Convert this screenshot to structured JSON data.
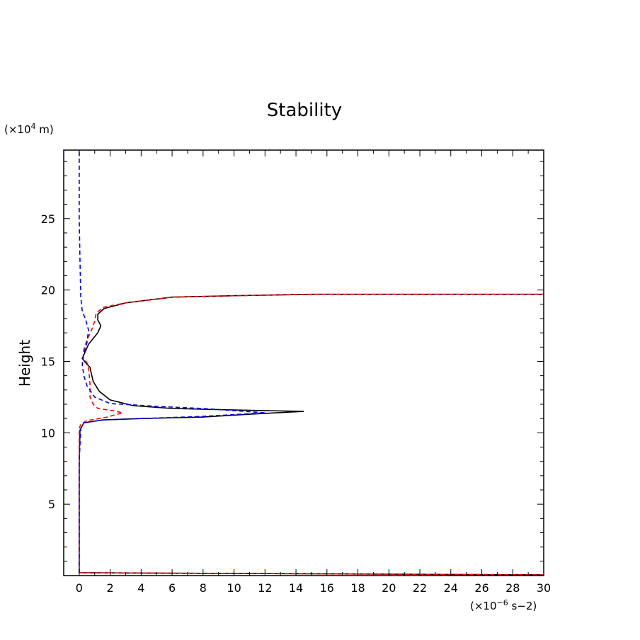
{
  "chart_data": {
    "type": "line",
    "title": "Stability",
    "ylabel": "Height",
    "y_unit_prefix": "(×10",
    "y_unit_exponent": "4",
    "y_unit_suffix": " m)",
    "x_unit_prefix": "(×10",
    "x_unit_exponent": "−6",
    "x_unit_suffix": " s−2)",
    "xlim": [
      -1,
      30
    ],
    "ylim": [
      0,
      29.8
    ],
    "x_ticks": [
      0,
      2,
      4,
      6,
      8,
      10,
      12,
      14,
      16,
      18,
      20,
      22,
      24,
      26,
      28,
      30
    ],
    "x_tick_labels": [
      "0",
      "2",
      "4",
      "6",
      "8",
      "10",
      "12",
      "14",
      "16",
      "18",
      "20",
      "22",
      "24",
      "26",
      "28",
      "30"
    ],
    "y_ticks": [
      5,
      10,
      15,
      20,
      25
    ],
    "y_tick_labels": [
      "5",
      "10",
      "15",
      "20",
      "25"
    ],
    "x_minor_step": 1,
    "y_minor_step": 1,
    "series": [
      {
        "name": "solid black",
        "color": "#000000",
        "dash": "solid",
        "points": [
          [
            30,
            0.05
          ],
          [
            0,
            0.2
          ],
          [
            0,
            2
          ],
          [
            0,
            8
          ],
          [
            0.05,
            10.2
          ],
          [
            0.3,
            10.7
          ],
          [
            1.5,
            10.9
          ],
          [
            4,
            11.0
          ],
          [
            8,
            11.1
          ],
          [
            11,
            11.3
          ],
          [
            14.5,
            11.5
          ],
          [
            10,
            11.6
          ],
          [
            6,
            11.7
          ],
          [
            3.5,
            11.9
          ],
          [
            2,
            12.3
          ],
          [
            1.3,
            12.9
          ],
          [
            0.9,
            13.6
          ],
          [
            0.75,
            14.3
          ],
          [
            0.7,
            14.6
          ],
          [
            0.5,
            14.8
          ],
          [
            0.2,
            15.2
          ],
          [
            0.6,
            16.2
          ],
          [
            1.2,
            17.0
          ],
          [
            1.4,
            17.5
          ],
          [
            1.2,
            17.9
          ],
          [
            1.2,
            18.3
          ],
          [
            1.6,
            18.7
          ],
          [
            3,
            19.1
          ],
          [
            6,
            19.5
          ],
          [
            10,
            19.6
          ],
          [
            15,
            19.7
          ],
          [
            22,
            19.7
          ],
          [
            30,
            19.7
          ]
        ]
      },
      {
        "name": "dashed red",
        "color": "#ff0000",
        "dash": "dashed",
        "points": [
          [
            30,
            0.05
          ],
          [
            0,
            0.2
          ],
          [
            0,
            2
          ],
          [
            0,
            8
          ],
          [
            0,
            10.3
          ],
          [
            0.1,
            10.6
          ],
          [
            0.5,
            10.85
          ],
          [
            1.8,
            11.1
          ],
          [
            2.8,
            11.4
          ],
          [
            2.2,
            11.55
          ],
          [
            1.2,
            11.7
          ],
          [
            0.9,
            12.0
          ],
          [
            0.7,
            12.5
          ],
          [
            0.7,
            13.4
          ],
          [
            0.65,
            14.0
          ],
          [
            0.6,
            14.6
          ],
          [
            0.5,
            14.9
          ],
          [
            0.25,
            15.3
          ],
          [
            0.3,
            15.8
          ],
          [
            0.5,
            16.5
          ],
          [
            0.8,
            17.2
          ],
          [
            1.0,
            17.8
          ],
          [
            1.1,
            18.4
          ],
          [
            1.6,
            18.8
          ],
          [
            3,
            19.1
          ],
          [
            6,
            19.5
          ],
          [
            10,
            19.6
          ],
          [
            15,
            19.7
          ],
          [
            22,
            19.7
          ],
          [
            30,
            19.7
          ]
        ]
      },
      {
        "name": "dashed blue",
        "color": "#0000ff",
        "dash": "dashed",
        "points": [
          [
            0,
            0.2
          ],
          [
            0,
            2
          ],
          [
            0,
            8
          ],
          [
            0.1,
            10.3
          ],
          [
            0.3,
            10.7
          ],
          [
            1.5,
            10.9
          ],
          [
            4,
            11.0
          ],
          [
            8,
            11.15
          ],
          [
            12,
            11.4
          ],
          [
            8,
            11.7
          ],
          [
            5,
            11.85
          ],
          [
            2,
            12.05
          ],
          [
            1,
            12.5
          ],
          [
            0.5,
            13.3
          ],
          [
            0.3,
            14.0
          ],
          [
            0.2,
            14.8
          ],
          [
            0.3,
            15.6
          ],
          [
            0.5,
            16.3
          ],
          [
            0.6,
            17.2
          ],
          [
            0.4,
            18.0
          ],
          [
            0.2,
            18.5
          ],
          [
            0.1,
            19.5
          ],
          [
            0.05,
            22
          ],
          [
            0,
            25
          ],
          [
            0,
            29.8
          ]
        ]
      }
    ]
  }
}
